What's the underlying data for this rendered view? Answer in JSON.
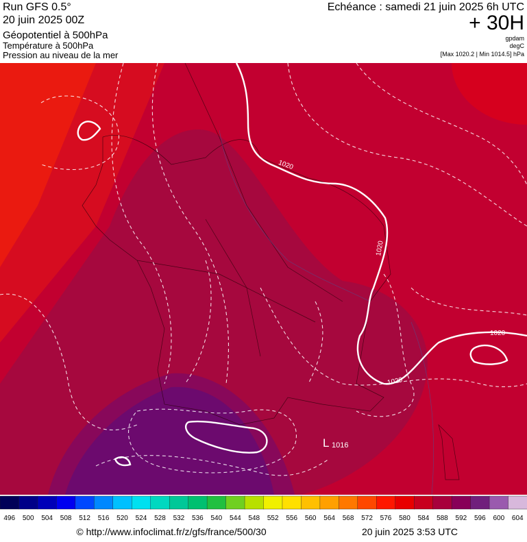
{
  "header": {
    "run": "Run GFS 0.5°",
    "run_date": "20 juin 2025 00Z",
    "layer_1": "Géopotentiel à 500hPa",
    "layer_2": "Température à 500hPa",
    "layer_3": "Pression au niveau de la mer",
    "forecast": "Echéance : samedi 21 juin 2025 6h UTC",
    "lead_time": "+ 30H",
    "unit_1": "gpdam",
    "unit_2": "degC",
    "extremes": "[Max 1020.2 | Min 1014.5] hPa"
  },
  "map": {
    "isobar_labels": [
      1020,
      1020,
      1020,
      1020
    ],
    "low": {
      "symbol": "L",
      "value": 1016
    }
  },
  "legend": {
    "labels": [
      496,
      500,
      504,
      508,
      512,
      516,
      520,
      524,
      528,
      532,
      536,
      540,
      544,
      548,
      552,
      556,
      560,
      564,
      568,
      572,
      576,
      580,
      584,
      588,
      592,
      596,
      600,
      604
    ],
    "colors": [
      "#000058",
      "#000088",
      "#0000b8",
      "#0000f0",
      "#0048ff",
      "#0088ff",
      "#00c0ff",
      "#00e0f0",
      "#00d8c0",
      "#00c898",
      "#00c070",
      "#20c040",
      "#70d020",
      "#b8e000",
      "#f0f000",
      "#ffe000",
      "#ffc000",
      "#ffa000",
      "#ff7800",
      "#ff4800",
      "#ff1800",
      "#e80000",
      "#c8001e",
      "#a8003c",
      "#880058",
      "#70207c",
      "#9a5aae",
      "#d8b8dc"
    ]
  },
  "footer": {
    "source": "© http://www.infoclimat.fr/z/gfs/france/500/30",
    "timestamp": "20 juin 2025  3:53 UTC"
  }
}
